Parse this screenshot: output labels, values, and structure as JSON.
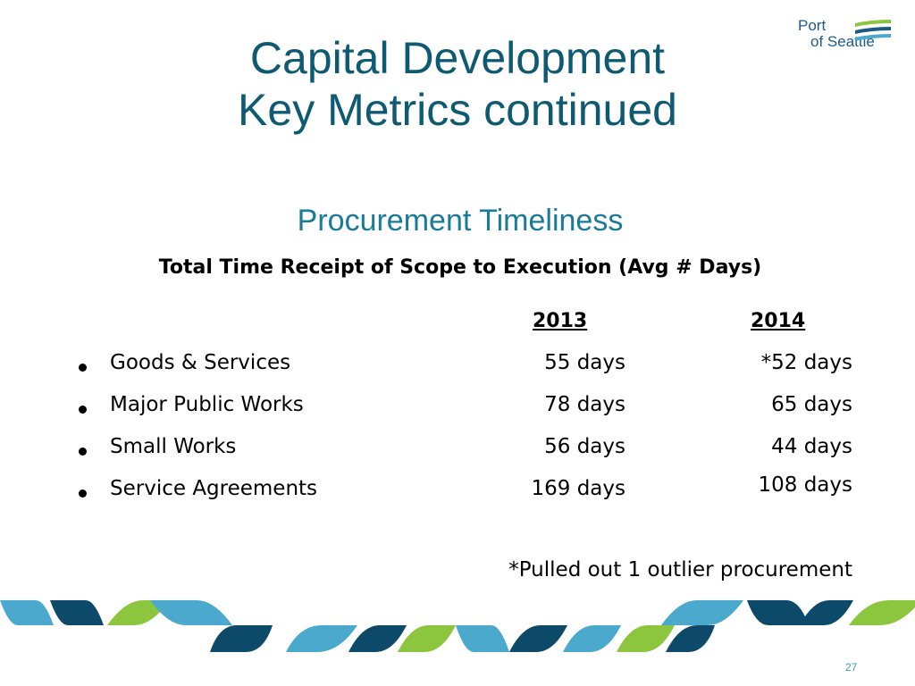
{
  "logo": {
    "line1": "Port",
    "line2": "of Seattle"
  },
  "slide": {
    "title_line1": "Capital Development",
    "title_line2": "Key Metrics continued",
    "subtitle": "Procurement Timeliness",
    "heading": "Total Time Receipt of Scope to Execution (Avg # Days)"
  },
  "table": {
    "columns": [
      "2013",
      "2014"
    ],
    "rows": [
      {
        "label": "Goods & Services",
        "y2013": "55 days",
        "y2014": "*52 days"
      },
      {
        "label": "Major Public Works",
        "y2013": "78 days",
        "y2014": "65 days"
      },
      {
        "label": "Small Works",
        "y2013": "56 days",
        "y2014": "44 days"
      },
      {
        "label": "Service Agreements",
        "y2013": "169 days",
        "y2014": "108 days"
      }
    ]
  },
  "footnote": "*Pulled out 1 outlier procurement",
  "page_number": "27",
  "colors": {
    "title": "#0f5a73",
    "subtitle": "#1a7a9a",
    "wave_blue": "#4aa9cc",
    "wave_navy": "#0d4a6a",
    "wave_green": "#8cc63f"
  }
}
